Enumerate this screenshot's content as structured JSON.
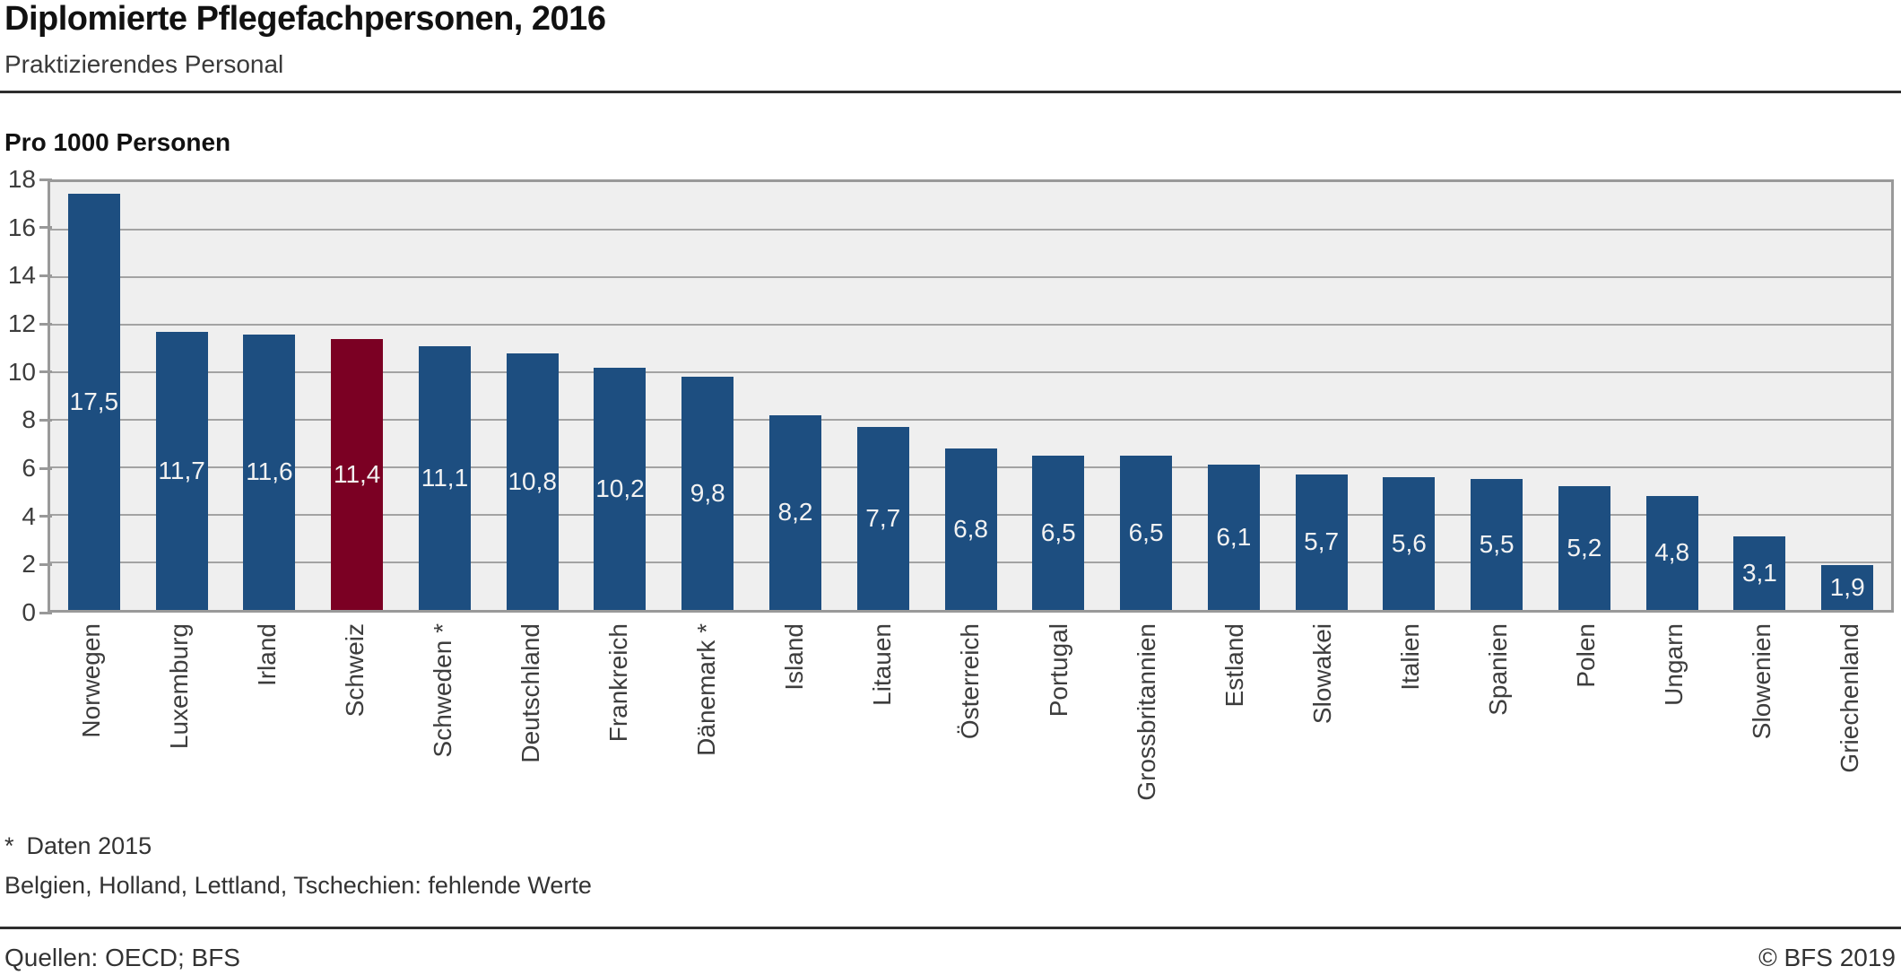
{
  "header": {
    "title": "Diplomierte Pflegefachpersonen, 2016",
    "subtitle": "Praktizierendes Personal"
  },
  "chart_data": {
    "type": "bar",
    "title": "Diplomierte Pflegefachpersonen, 2016",
    "subtitle": "Praktizierendes Personal",
    "ylabel": "Pro 1000 Personen",
    "xlabel": "",
    "ylim": [
      0,
      18
    ],
    "yticks": [
      0,
      2,
      4,
      6,
      8,
      10,
      12,
      14,
      16,
      18
    ],
    "grid": true,
    "legend": "none",
    "categories": [
      "Norwegen",
      "Luxemburg",
      "Irland",
      "Schweiz",
      "Schweden *",
      "Deutschland",
      "Frankreich",
      "Dänemark *",
      "Island",
      "Litauen",
      "Österreich",
      "Portugal",
      "Grossbritannien",
      "Estland",
      "Slowakei",
      "Italien",
      "Spanien",
      "Polen",
      "Ungarn",
      "Slowenien",
      "Griechenland"
    ],
    "values": [
      17.5,
      11.7,
      11.6,
      11.4,
      11.1,
      10.8,
      10.2,
      9.8,
      8.2,
      7.7,
      6.8,
      6.5,
      6.5,
      6.1,
      5.7,
      5.6,
      5.5,
      5.2,
      4.8,
      3.1,
      1.9
    ],
    "value_labels": [
      "17,5",
      "11,7",
      "11,6",
      "11,4",
      "11,1",
      "10,8",
      "10,2",
      "9,8",
      "8,2",
      "7,7",
      "6,8",
      "6,5",
      "6,5",
      "6,1",
      "5,7",
      "5,6",
      "5,5",
      "5,2",
      "4,8",
      "3,1",
      "1,9"
    ],
    "highlight_index": 3,
    "bar_color": "#1d4e80",
    "highlight_color": "#7b0023",
    "plot_background": "#efefef",
    "gridline_color": "#a3a3a3",
    "value_label_color": "#f2f2f2"
  },
  "footnotes": {
    "marker": "*",
    "note1": "Daten 2015",
    "note2": "Belgien, Holland, Lettland, Tschechien: fehlende Werte"
  },
  "footer": {
    "source": "Quellen: OECD; BFS",
    "copyright": "© BFS 2019"
  }
}
